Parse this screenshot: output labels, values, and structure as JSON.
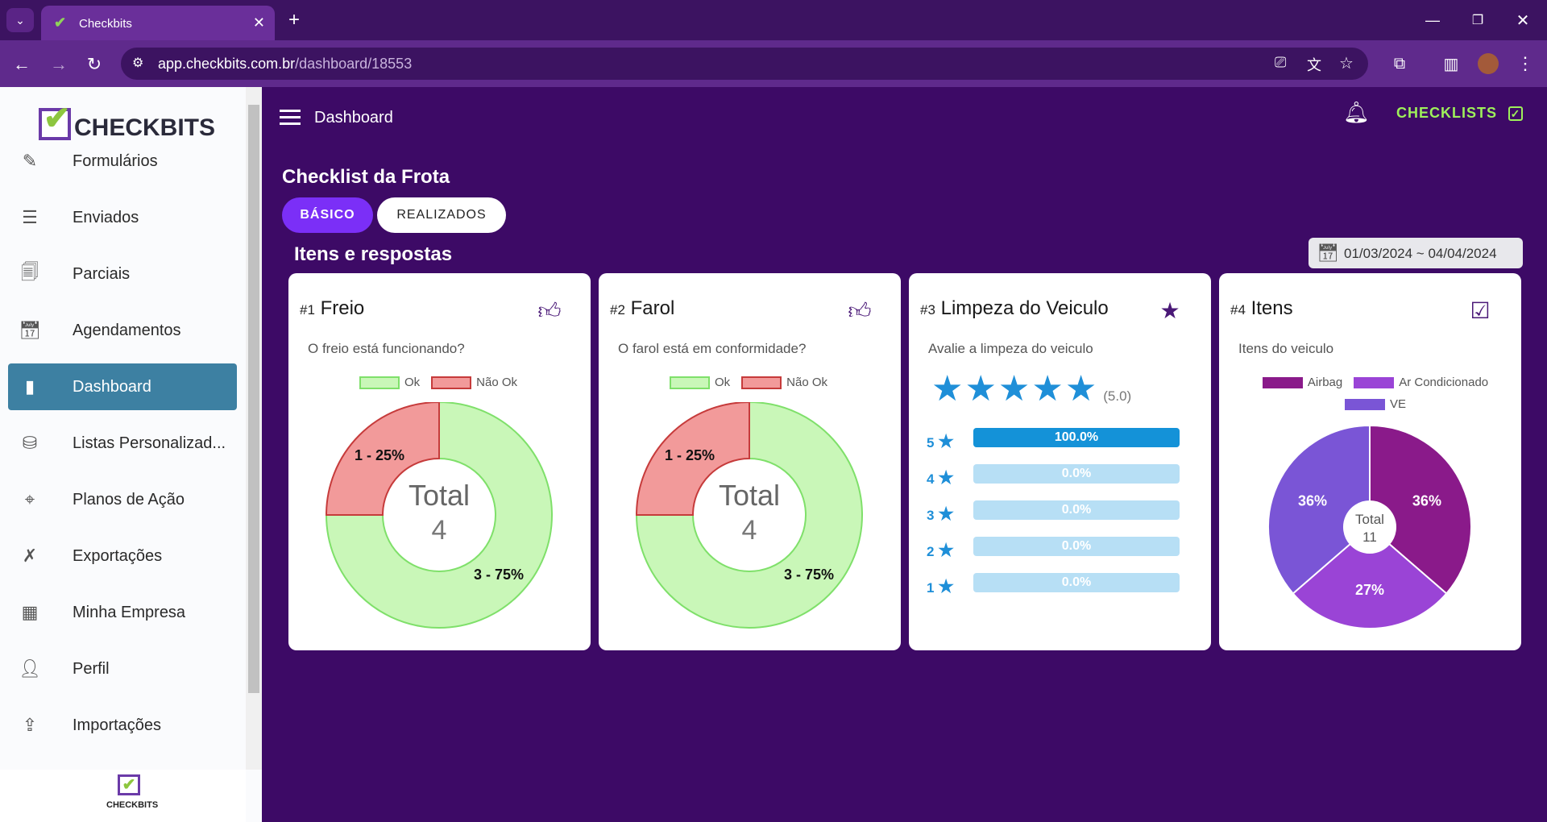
{
  "browser": {
    "tab_title": "Checkbits",
    "url_host": "app.checkbits.com.br",
    "url_path": "/dashboard/18553"
  },
  "brand": {
    "name": "CHECKBITS",
    "footer_name": "CHECKBITS"
  },
  "sidebar": {
    "items": [
      {
        "label": "Formulários",
        "icon": "form-edit-icon"
      },
      {
        "label": "Enviados",
        "icon": "sent-list-icon"
      },
      {
        "label": "Parciais",
        "icon": "partial-doc-icon"
      },
      {
        "label": "Agendamentos",
        "icon": "calendar-check-icon"
      },
      {
        "label": "Dashboard",
        "icon": "bar-chart-icon",
        "active": true
      },
      {
        "label": "Listas Personalizad...",
        "icon": "database-icon"
      },
      {
        "label": "Planos de Ação",
        "icon": "target-icon"
      },
      {
        "label": "Exportações",
        "icon": "excel-icon"
      },
      {
        "label": "Minha Empresa",
        "icon": "building-icon"
      },
      {
        "label": "Perfil",
        "icon": "person-icon"
      },
      {
        "label": "Importações",
        "icon": "upload-file-icon"
      }
    ]
  },
  "header": {
    "title": "Dashboard",
    "checklists_label": "CHECKLISTS"
  },
  "page": {
    "title": "Checklist da Frota",
    "tabs": [
      {
        "label": "BÁSICO",
        "active": true
      },
      {
        "label": "REALIZADOS",
        "active": false
      }
    ],
    "section_title": "Itens e respostas",
    "date_range": "01/03/2024 ~ 04/04/2024"
  },
  "colors": {
    "accent": "#7b2ff7",
    "ok_fill": "#c9f7b8",
    "ok_stroke": "#7fe06a",
    "notok_fill": "#f29a9a",
    "notok_stroke": "#c63b3b",
    "bar_blue": "#1492d8",
    "airbag": "#8a1a8a",
    "ar": "#9a44d6",
    "ve": "#7a55d6"
  },
  "cards": [
    {
      "num": "#1",
      "title": "Freio",
      "question": "O freio está funcionando?",
      "icon": "thumbs-up-down-icon",
      "chart_data": {
        "type": "pie",
        "legend": [
          "Ok",
          "Não Ok"
        ],
        "values": [
          3,
          1
        ],
        "labels": [
          "3 - 75%",
          "1 - 25%"
        ],
        "center_label": "Total",
        "center_value": "4"
      }
    },
    {
      "num": "#2",
      "title": "Farol",
      "question": "O farol está em conformidade?",
      "icon": "thumbs-up-down-icon",
      "chart_data": {
        "type": "pie",
        "legend": [
          "Ok",
          "Não Ok"
        ],
        "values": [
          3,
          1
        ],
        "labels": [
          "3 - 75%",
          "1 - 25%"
        ],
        "center_label": "Total",
        "center_value": "4"
      }
    },
    {
      "num": "#3",
      "title": "Limpeza do Veiculo",
      "question": "Avalie a limpeza do veiculo",
      "icon": "star-icon",
      "rating": 5,
      "rating_text": "(5.0)",
      "chart_data": {
        "type": "bar",
        "categories": [
          "5",
          "4",
          "3",
          "2",
          "1"
        ],
        "values": [
          100.0,
          0.0,
          0.0,
          0.0,
          0.0
        ],
        "labels": [
          "100.0%",
          "0.0%",
          "0.0%",
          "0.0%",
          "0.0%"
        ]
      }
    },
    {
      "num": "#4",
      "title": "Itens",
      "question": "Itens do veiculo",
      "icon": "checkbox-edit-icon",
      "chart_data": {
        "type": "pie",
        "legend": [
          "Airbag",
          "Ar Condicionado",
          "VE"
        ],
        "values": [
          36,
          27,
          36
        ],
        "labels": [
          "36%",
          "27%",
          "36%"
        ],
        "center_label": "Total",
        "center_value": "11"
      }
    }
  ]
}
